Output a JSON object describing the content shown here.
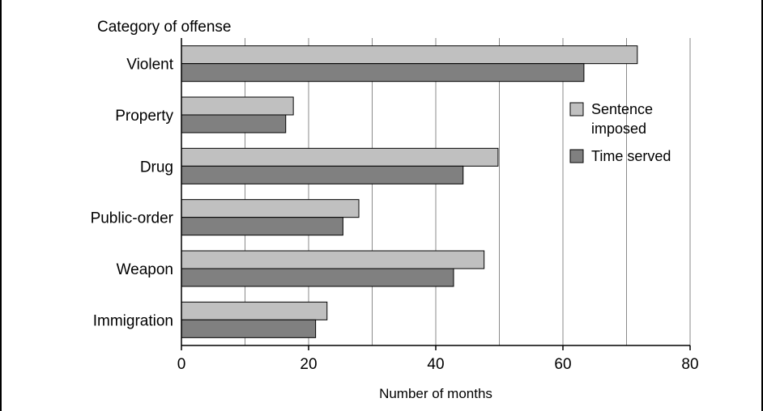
{
  "chart_data": {
    "type": "bar",
    "orientation": "horizontal",
    "title": "",
    "ylabel": "Category of offense",
    "xlabel": "Number of months",
    "categories": [
      "Violent",
      "Property",
      "Drug",
      "Public-order",
      "Weapon",
      "Immigration"
    ],
    "series": [
      {
        "name": "Sentence imposed",
        "values": [
          71.7,
          17.6,
          49.8,
          27.9,
          47.6,
          22.9
        ],
        "color": "#c0c0c0"
      },
      {
        "name": "Time served",
        "values": [
          63.3,
          16.4,
          44.3,
          25.4,
          42.8,
          21.1
        ],
        "color": "#808080"
      }
    ],
    "xlim": [
      0,
      80
    ],
    "xticks": [
      "0",
      "20",
      "40",
      "60",
      "80"
    ],
    "grid": true,
    "legend_position": "right"
  },
  "legend": {
    "line1": "Sentence",
    "line2": "imposed",
    "line3": "Time served"
  }
}
